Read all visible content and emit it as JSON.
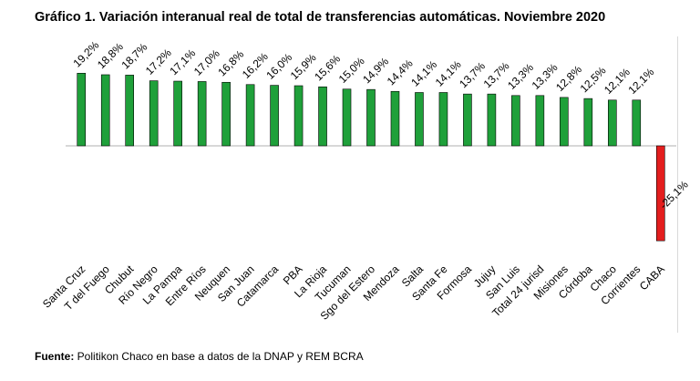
{
  "title": "Gráfico 1. Variación interanual real de total de transferencias automáticas. Noviembre 2020",
  "source": {
    "label": "Fuente:",
    "text": " Politikon Chaco en base a datos de la DNAP y REM BCRA"
  },
  "colors": {
    "positive": "#1fa03a",
    "negative": "#e31e1e",
    "border": "#000000"
  },
  "chart_data": {
    "type": "bar",
    "categories": [
      "Santa Cruz",
      "T del Fuego",
      "Chubut",
      "Río Negro",
      "La Pampa",
      "Entre Ríos",
      "Neuquen",
      "San Juan",
      "Catamarca",
      "PBA",
      "La Rioja",
      "Tucuman",
      "Sgo del Estero",
      "Mendoza",
      "Salta",
      "Santa Fe",
      "Formosa",
      "Jujuy",
      "San Luis",
      "Total 24 jurisd",
      "Misiones",
      "Córdoba",
      "Chaco",
      "Corrientes",
      "CABA"
    ],
    "values": [
      19.2,
      18.8,
      18.7,
      17.2,
      17.1,
      17.0,
      16.8,
      16.2,
      16.0,
      15.9,
      15.6,
      15.0,
      14.9,
      14.4,
      14.1,
      14.1,
      13.7,
      13.7,
      13.3,
      13.3,
      12.8,
      12.5,
      12.1,
      12.1,
      -25.1
    ],
    "data_labels": [
      "19,2%",
      "18,8%",
      "18,7%",
      "17,2%",
      "17,1%",
      "17,0%",
      "16,8%",
      "16,2%",
      "16,0%",
      "15,9%",
      "15,6%",
      "15,0%",
      "14,9%",
      "14,4%",
      "14,1%",
      "14,1%",
      "13,7%",
      "13,7%",
      "13,3%",
      "13,3%",
      "12,8%",
      "12,5%",
      "12,1%",
      "12,1%",
      "-25,1%"
    ],
    "ylim": [
      -25.1,
      19.2
    ],
    "grid": false,
    "legend": "none"
  }
}
